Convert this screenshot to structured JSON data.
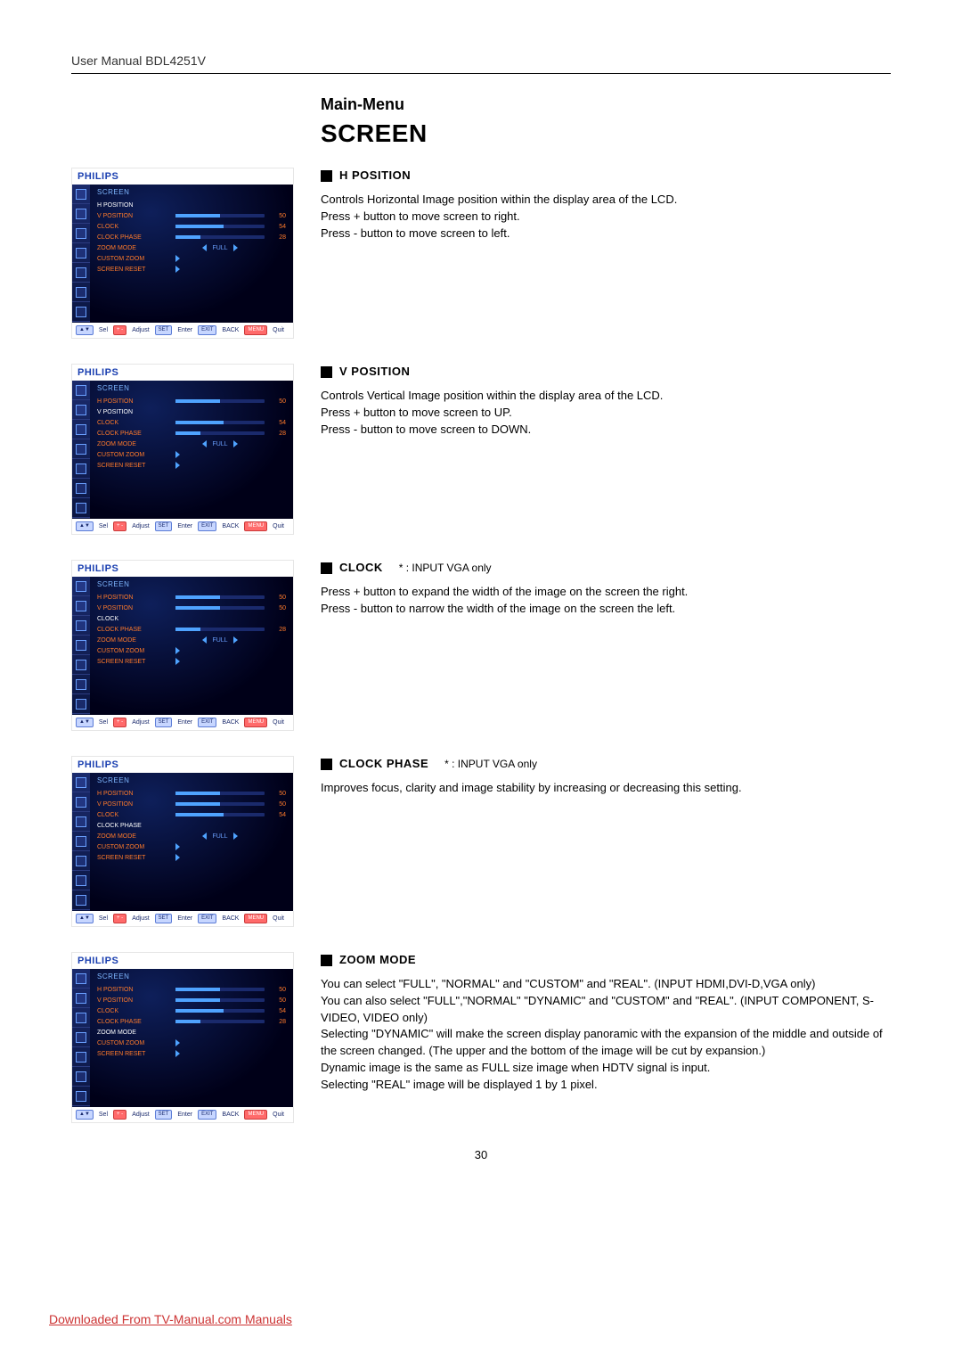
{
  "header": {
    "manual": "User Manual BDL4251V"
  },
  "titles": {
    "main_menu": "Main-Menu",
    "screen": "SCREEN"
  },
  "brand": "PHILIPS",
  "osd_footer": {
    "sel_btn": "▲▼",
    "sel": "Sel",
    "adj_btn": "+ -",
    "adj": "Adjust",
    "enter_btn": "SET",
    "enter": "Enter",
    "back_btn": "EXIT",
    "back": "BACK",
    "quit_btn": "MENU",
    "quit": "Quit"
  },
  "menu_header": "SCREEN",
  "items": {
    "h_position": "H POSITION",
    "v_position": "V POSITION",
    "clock": "CLOCK",
    "clock_phase": "CLOCK PHASE",
    "zoom_mode": "ZOOM MODE",
    "custom_zoom": "CUSTOM ZOOM",
    "screen_reset": "SCREEN RESET",
    "full": "FULL"
  },
  "osd": [
    {
      "selected_index": 0,
      "rows": [
        {
          "label_key": "h_position",
          "type": "empty"
        },
        {
          "label_key": "v_position",
          "type": "bar",
          "value": 50,
          "max": 100
        },
        {
          "label_key": "clock",
          "type": "bar",
          "value": 54,
          "max": 100
        },
        {
          "label_key": "clock_phase",
          "type": "bar",
          "value": 28,
          "max": 100
        },
        {
          "label_key": "zoom_mode",
          "type": "full_arrows",
          "text_key": "full"
        },
        {
          "label_key": "custom_zoom",
          "type": "arrow_right"
        },
        {
          "label_key": "screen_reset",
          "type": "arrow_right"
        }
      ]
    },
    {
      "selected_index": 1,
      "rows": [
        {
          "label_key": "h_position",
          "type": "bar",
          "value": 50,
          "max": 100
        },
        {
          "label_key": "v_position",
          "type": "empty"
        },
        {
          "label_key": "clock",
          "type": "bar",
          "value": 54,
          "max": 100
        },
        {
          "label_key": "clock_phase",
          "type": "bar",
          "value": 28,
          "max": 100
        },
        {
          "label_key": "zoom_mode",
          "type": "full_arrows",
          "text_key": "full"
        },
        {
          "label_key": "custom_zoom",
          "type": "arrow_right"
        },
        {
          "label_key": "screen_reset",
          "type": "arrow_right"
        }
      ]
    },
    {
      "selected_index": 2,
      "rows": [
        {
          "label_key": "h_position",
          "type": "bar",
          "value": 50,
          "max": 100
        },
        {
          "label_key": "v_position",
          "type": "bar",
          "value": 50,
          "max": 100
        },
        {
          "label_key": "clock",
          "type": "empty"
        },
        {
          "label_key": "clock_phase",
          "type": "bar",
          "value": 28,
          "max": 100
        },
        {
          "label_key": "zoom_mode",
          "type": "full_arrows",
          "text_key": "full"
        },
        {
          "label_key": "custom_zoom",
          "type": "arrow_right"
        },
        {
          "label_key": "screen_reset",
          "type": "arrow_right"
        }
      ]
    },
    {
      "selected_index": 3,
      "rows": [
        {
          "label_key": "h_position",
          "type": "bar",
          "value": 50,
          "max": 100
        },
        {
          "label_key": "v_position",
          "type": "bar",
          "value": 50,
          "max": 100
        },
        {
          "label_key": "clock",
          "type": "bar",
          "value": 54,
          "max": 100
        },
        {
          "label_key": "clock_phase",
          "type": "empty"
        },
        {
          "label_key": "zoom_mode",
          "type": "full_arrows",
          "text_key": "full"
        },
        {
          "label_key": "custom_zoom",
          "type": "arrow_right"
        },
        {
          "label_key": "screen_reset",
          "type": "arrow_right"
        }
      ]
    },
    {
      "selected_index": 4,
      "rows": [
        {
          "label_key": "h_position",
          "type": "bar",
          "value": 50,
          "max": 100
        },
        {
          "label_key": "v_position",
          "type": "bar",
          "value": 50,
          "max": 100
        },
        {
          "label_key": "clock",
          "type": "bar",
          "value": 54,
          "max": 100
        },
        {
          "label_key": "clock_phase",
          "type": "bar",
          "value": 28,
          "max": 100
        },
        {
          "label_key": "zoom_mode",
          "type": "empty"
        },
        {
          "label_key": "custom_zoom",
          "type": "arrow_right"
        },
        {
          "label_key": "screen_reset",
          "type": "arrow_right"
        }
      ]
    }
  ],
  "descriptions": [
    {
      "title": "H POSITION",
      "note": "",
      "body": [
        "Controls Horizontal Image position within the display area of the LCD.",
        "Press + button to move screen to right.",
        "Press - button to move screen to left."
      ]
    },
    {
      "title": "V POSITION",
      "note": "",
      "body": [
        "Controls Vertical Image position within the display area of the LCD.",
        "Press + button to move screen to UP.",
        "Press - button to move screen to DOWN."
      ]
    },
    {
      "title": "CLOCK",
      "note": "* : INPUT VGA only",
      "body": [
        "Press + button to expand the width of the image on the screen the right.",
        "Press - button to narrow the width of the image on the screen the left."
      ]
    },
    {
      "title": "CLOCK PHASE",
      "note": "* : INPUT VGA only",
      "body": [
        "Improves focus, clarity and image stability by increasing or decreasing this setting."
      ]
    },
    {
      "title": "ZOOM MODE",
      "note": "",
      "body": [
        "You can select \"FULL\", \"NORMAL\" and \"CUSTOM\" and \"REAL\". (INPUT HDMI,DVI-D,VGA only)",
        "You can also select \"FULL\",\"NORMAL\" \"DYNAMIC\" and \"CUSTOM\" and \"REAL\". (INPUT COMPONENT, S-VIDEO, VIDEO only)",
        "Selecting \"DYNAMIC\" will make the screen display panoramic with the expansion of the middle and outside of the screen changed. (The upper and the bottom of the image will be cut by expansion.)",
        "Dynamic image is the same as FULL size image when HDTV signal is input.",
        "Selecting \"REAL\" image will be displayed 1 by 1 pixel."
      ]
    }
  ],
  "page_number": "30",
  "footer_link": "Downloaded From TV-Manual.com Manuals",
  "colors": {
    "brand_blue": "#1a3fb0",
    "menu_orange": "#ff7a2a",
    "bar_fill": "#4fa3ff",
    "osd_dark": "#000020",
    "link_red": "#cc3333"
  }
}
